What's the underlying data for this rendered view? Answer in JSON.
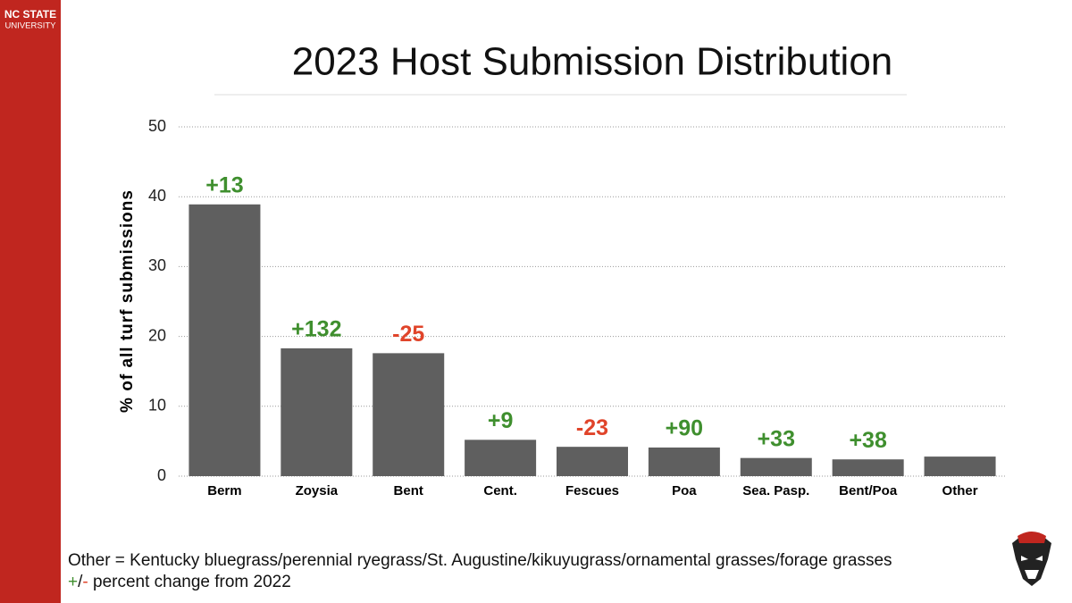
{
  "brand": {
    "line1": "NC STATE",
    "line2": "UNIVERSITY",
    "color": "#c0261f"
  },
  "chart_data": {
    "type": "bar",
    "title": "2023 Host Submission Distribution",
    "y_label": "% of all turf submissions",
    "categories": [
      "Berm",
      "Zoysia",
      "Bent",
      "Cent.",
      "Fescues",
      "Poa",
      "Sea. Pasp.",
      "Bent/Poa",
      "Other"
    ],
    "values": [
      38.9,
      18.3,
      17.6,
      5.2,
      4.2,
      4.1,
      2.6,
      2.4,
      2.8
    ],
    "color": "#5f5f5f",
    "annotations": [
      {
        "text": "+13",
        "color": "#3f8f2e"
      },
      {
        "text": "+132",
        "color": "#3f8f2e"
      },
      {
        "text": "-25",
        "color": "#e0442a"
      },
      {
        "text": "+9",
        "color": "#3f8f2e"
      },
      {
        "text": "-23",
        "color": "#e0442a"
      },
      {
        "text": "+90",
        "color": "#3f8f2e"
      },
      {
        "text": "+33",
        "color": "#3f8f2e"
      },
      {
        "text": "+38",
        "color": "#3f8f2e"
      },
      null
    ],
    "ylim": [
      0,
      50
    ],
    "yticks": [
      0,
      10,
      20,
      30,
      40,
      50
    ],
    "grid": true
  },
  "footnotes": {
    "line1": "Other = Kentucky bluegrass/perennial ryegrass/St. Augustine/kikuyugrass/ornamental grasses/forage grasses",
    "line2": [
      {
        "text": "+",
        "color": "#3f8f2e"
      },
      {
        "text": "/"
      },
      {
        "text": "-",
        "color": "#e0442a"
      },
      {
        "text": " percent change from 2022"
      }
    ]
  }
}
